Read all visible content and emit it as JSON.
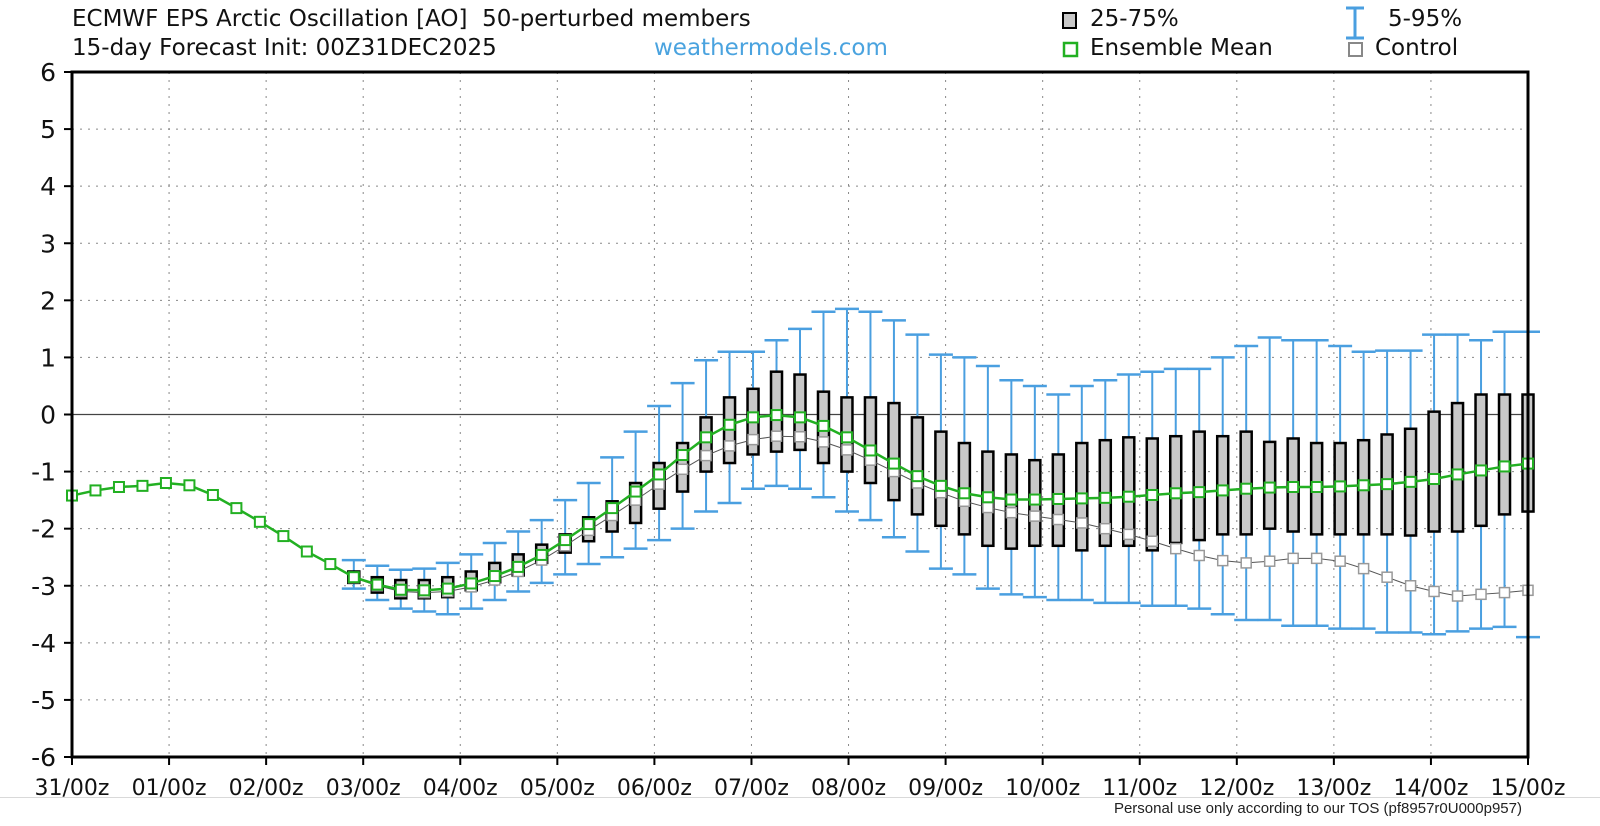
{
  "title": "ECMWF EPS Arctic Oscillation [AO]  50-perturbed members",
  "subtitle": "15-day Forecast Init: 00Z31DEC2025",
  "brand": "weathermodels.com",
  "footer": "Personal use only according to our TOS (pf8957r0U000p957)",
  "legend": {
    "iqr": "25-75%",
    "whisker": "5-95%",
    "mean": "Ensemble Mean",
    "control": "Control"
  },
  "colors": {
    "box_fill": "#c8c8c8",
    "whisker": "#4a9fe0",
    "mean": "#22b022",
    "control_marker": "#999999",
    "control_line": "#555555",
    "zero_line": "#444444",
    "grid": "#888888"
  },
  "chart_data": {
    "type": "box",
    "x_unit": "hours since init (6-hourly)",
    "xlim": [
      0,
      336
    ],
    "ylim": [
      -6,
      6
    ],
    "yticks": [
      "-6",
      "-5",
      "-4",
      "-3",
      "-2",
      "-1",
      "0",
      "1",
      "2",
      "3",
      "4",
      "5",
      "6"
    ],
    "xticks": [
      "31/00z",
      "01/00z",
      "02/00z",
      "03/00z",
      "04/00z",
      "05/00z",
      "06/00z",
      "07/00z",
      "08/00z",
      "09/00z",
      "10/00z",
      "11/00z",
      "12/00z",
      "13/00z",
      "14/00z",
      "15/00z"
    ],
    "grid": true,
    "zero_line": true,
    "series": {
      "mean": [
        -1.42,
        -1.33,
        -1.27,
        -1.25,
        -1.2,
        -1.24,
        -1.41,
        -1.64,
        -1.88,
        -2.13,
        -2.4,
        -2.62,
        -2.85,
        -2.98,
        -3.07,
        -3.08,
        -3.05,
        -2.96,
        -2.83,
        -2.67,
        -2.46,
        -2.2,
        -1.92,
        -1.64,
        -1.35,
        -1.05,
        -0.71,
        -0.4,
        -0.18,
        -0.05,
        -0.01,
        -0.05,
        -0.2,
        -0.4,
        -0.63,
        -0.86,
        -1.08,
        -1.25,
        -1.38,
        -1.45,
        -1.49,
        -1.49,
        -1.48,
        -1.47,
        -1.46,
        -1.44,
        -1.41,
        -1.38,
        -1.36,
        -1.33,
        -1.3,
        -1.28,
        -1.27,
        -1.27,
        -1.26,
        -1.24,
        -1.22,
        -1.18,
        -1.13,
        -1.05,
        -0.98,
        -0.91,
        -0.86
      ],
      "control": [
        -1.42,
        -1.33,
        -1.27,
        -1.25,
        -1.2,
        -1.24,
        -1.41,
        -1.64,
        -1.88,
        -2.13,
        -2.4,
        -2.62,
        -2.86,
        -3.0,
        -3.1,
        -3.12,
        -3.1,
        -3.02,
        -2.9,
        -2.75,
        -2.55,
        -2.3,
        -2.03,
        -1.77,
        -1.5,
        -1.22,
        -0.96,
        -0.72,
        -0.55,
        -0.44,
        -0.38,
        -0.39,
        -0.48,
        -0.62,
        -0.8,
        -1.0,
        -1.2,
        -1.37,
        -1.52,
        -1.63,
        -1.72,
        -1.78,
        -1.84,
        -1.9,
        -2.0,
        -2.1,
        -2.22,
        -2.35,
        -2.47,
        -2.56,
        -2.6,
        -2.57,
        -2.52,
        -2.52,
        -2.57,
        -2.7,
        -2.85,
        -3.0,
        -3.1,
        -3.18,
        -3.15,
        -3.12,
        -3.08
      ],
      "q25": [
        -1.42,
        -1.33,
        -1.27,
        -1.25,
        -1.2,
        -1.24,
        -1.41,
        -1.64,
        -1.88,
        -2.13,
        -2.4,
        -2.62,
        -2.95,
        -3.12,
        -3.22,
        -3.22,
        -3.2,
        -3.08,
        -2.94,
        -2.82,
        -2.6,
        -2.42,
        -2.22,
        -2.05,
        -1.9,
        -1.65,
        -1.35,
        -1.0,
        -0.85,
        -0.7,
        -0.65,
        -0.62,
        -0.85,
        -1.0,
        -1.2,
        -1.5,
        -1.75,
        -1.95,
        -2.1,
        -2.3,
        -2.35,
        -2.3,
        -2.3,
        -2.38,
        -2.3,
        -2.3,
        -2.38,
        -2.25,
        -2.2,
        -2.1,
        -2.1,
        -2.0,
        -2.05,
        -2.1,
        -2.1,
        -2.1,
        -2.1,
        -2.12,
        -2.05,
        -2.05,
        -1.95,
        -1.75,
        -1.7
      ],
      "q75": [
        -1.42,
        -1.33,
        -1.27,
        -1.25,
        -1.2,
        -1.24,
        -1.41,
        -1.64,
        -1.88,
        -2.13,
        -2.4,
        -2.62,
        -2.75,
        -2.85,
        -2.9,
        -2.9,
        -2.85,
        -2.75,
        -2.6,
        -2.45,
        -2.28,
        -2.1,
        -1.8,
        -1.52,
        -1.2,
        -0.85,
        -0.5,
        -0.05,
        0.3,
        0.45,
        0.75,
        0.7,
        0.4,
        0.3,
        0.3,
        0.2,
        -0.05,
        -0.3,
        -0.5,
        -0.65,
        -0.7,
        -0.8,
        -0.7,
        -0.5,
        -0.45,
        -0.4,
        -0.42,
        -0.38,
        -0.3,
        -0.38,
        -0.3,
        -0.48,
        -0.42,
        -0.5,
        -0.5,
        -0.45,
        -0.35,
        -0.25,
        0.05,
        0.2,
        0.35,
        0.35,
        0.35
      ],
      "p05": [
        -1.42,
        -1.33,
        -1.27,
        -1.25,
        -1.2,
        -1.24,
        -1.41,
        -1.64,
        -1.88,
        -2.13,
        -2.4,
        -2.62,
        -3.05,
        -3.25,
        -3.4,
        -3.45,
        -3.5,
        -3.4,
        -3.25,
        -3.1,
        -2.95,
        -2.8,
        -2.62,
        -2.5,
        -2.35,
        -2.2,
        -2.0,
        -1.7,
        -1.55,
        -1.3,
        -1.25,
        -1.3,
        -1.45,
        -1.7,
        -1.85,
        -2.15,
        -2.4,
        -2.7,
        -2.8,
        -3.05,
        -3.15,
        -3.2,
        -3.25,
        -3.25,
        -3.3,
        -3.3,
        -3.35,
        -3.35,
        -3.4,
        -3.5,
        -3.6,
        -3.6,
        -3.7,
        -3.7,
        -3.75,
        -3.75,
        -3.82,
        -3.82,
        -3.85,
        -3.8,
        -3.75,
        -3.72,
        -3.9
      ],
      "p95": [
        -1.42,
        -1.33,
        -1.27,
        -1.25,
        -1.2,
        -1.24,
        -1.41,
        -1.64,
        -1.88,
        -2.13,
        -2.4,
        -2.62,
        -2.55,
        -2.65,
        -2.72,
        -2.7,
        -2.6,
        -2.45,
        -2.25,
        -2.05,
        -1.85,
        -1.5,
        -1.2,
        -0.75,
        -0.3,
        0.15,
        0.55,
        0.95,
        1.1,
        1.1,
        1.3,
        1.5,
        1.8,
        1.85,
        1.8,
        1.65,
        1.4,
        1.05,
        1.0,
        0.85,
        0.6,
        0.5,
        0.35,
        0.5,
        0.6,
        0.7,
        0.75,
        0.8,
        0.8,
        1.0,
        1.2,
        1.35,
        1.3,
        1.3,
        1.2,
        1.1,
        1.12,
        1.12,
        1.4,
        1.4,
        1.3,
        1.45,
        1.45
      ]
    }
  }
}
